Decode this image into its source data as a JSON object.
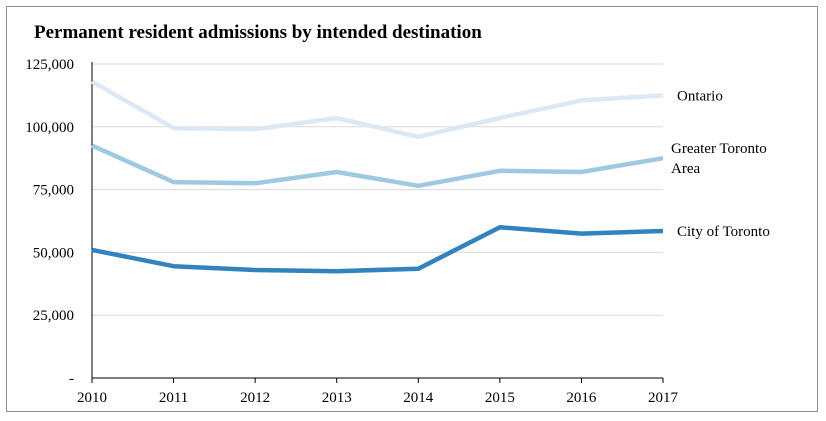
{
  "chart_data": {
    "type": "line",
    "title": "Permanent resident admissions by intended destination",
    "x": [
      "2010",
      "2011",
      "2012",
      "2013",
      "2014",
      "2015",
      "2016",
      "2017"
    ],
    "ylim": [
      0,
      125000
    ],
    "yticks": [
      {
        "value": 0,
        "label": "-"
      },
      {
        "value": 25000,
        "label": "25,000"
      },
      {
        "value": 50000,
        "label": "50,000"
      },
      {
        "value": 75000,
        "label": "75,000"
      },
      {
        "value": 100000,
        "label": "100,000"
      },
      {
        "value": 125000,
        "label": "125,000"
      }
    ],
    "grid": true,
    "legend": "inline labels at right end of lines",
    "series": [
      {
        "name": "Ontario",
        "label_lines": [
          "Ontario"
        ],
        "color": "#dce8f4",
        "values": [
          118000,
          99500,
          99000,
          103500,
          96000,
          103500,
          110500,
          112500
        ]
      },
      {
        "name": "Greater Toronto Area",
        "label_lines": [
          "Greater Toronto",
          "Area"
        ],
        "color": "#9ecae1",
        "values": [
          92500,
          78000,
          77500,
          82000,
          76500,
          82500,
          82000,
          87500
        ]
      },
      {
        "name": "City of Toronto",
        "label_lines": [
          "City of Toronto"
        ],
        "color": "#3182bd",
        "values": [
          51000,
          44500,
          43000,
          42500,
          43500,
          60000,
          57500,
          58500
        ]
      }
    ]
  }
}
